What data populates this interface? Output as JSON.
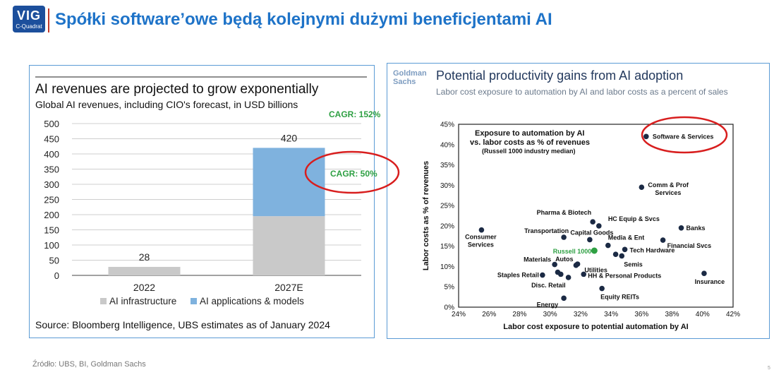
{
  "header": {
    "logo_text": "VIG",
    "logo_sub": "C-Quadrat",
    "title": "Spółki software’owe będą kolejnymi dużymi beneficjentami AI"
  },
  "left_chart": {
    "title": "AI revenues are projected to grow exponentially",
    "subtitle": "Global AI revenues, including CIO's forecast, in USD billions",
    "cagr_top": "CAGR: 152%",
    "cagr_mid": "CAGR: 50%",
    "source": "Source: Bloomberg Intelligence, UBS estimates as of January 2024",
    "colors": {
      "infrastructure": "#c9c9c9",
      "applications": "#7fb2de",
      "cagr": "#2ea043",
      "highlight": "#d81e1e"
    }
  },
  "right_chart": {
    "brand_line1": "Goldman",
    "brand_line2": "Sachs",
    "title": "Potential productivity gains from AI adoption",
    "subtitle": "Labor cost exposure to automation by AI and labor costs as a percent of sales",
    "inner_title_1": "Exposure to automation by AI",
    "inner_title_2": "vs. labor costs as % of revenues",
    "inner_title_3": "(Russell 1000 industry median)",
    "colors": {
      "point": "#1b2a44",
      "benchmark": "#2ea043",
      "highlight": "#d81e1e"
    }
  },
  "footer": {
    "source": "Źródło: UBS, BI, Goldman Sachs",
    "page": "5"
  },
  "chart_data": [
    {
      "type": "bar",
      "stacked": true,
      "categories": [
        "2022",
        "2027E"
      ],
      "series": [
        {
          "name": "AI infrastructure",
          "values": [
            28,
            195
          ]
        },
        {
          "name": "AI applications & models",
          "values": [
            0,
            225
          ]
        }
      ],
      "totals": [
        28,
        420
      ],
      "ylim": [
        0,
        500
      ],
      "yticks": [
        0,
        50,
        100,
        150,
        200,
        250,
        300,
        350,
        400,
        450,
        500
      ],
      "grid": true,
      "legend": "bottom"
    },
    {
      "type": "scatter",
      "xlabel": "Labor cost exposure to potential automation by AI",
      "ylabel": "Labor costs as % of revenues",
      "xlim": [
        24,
        42
      ],
      "ylim": [
        0,
        45
      ],
      "xticks": [
        24,
        26,
        28,
        30,
        32,
        34,
        36,
        38,
        40,
        42
      ],
      "yticks": [
        0,
        5,
        10,
        15,
        20,
        25,
        30,
        35,
        40,
        45
      ],
      "tick_suffix": "%",
      "points": [
        {
          "label": "Software & Services",
          "x": 36.3,
          "y": 42.0
        },
        {
          "label": "Comm & Prof",
          "label2": "Services",
          "x": 36.0,
          "y": 29.5
        },
        {
          "label": "Pharma & Biotech",
          "x": 32.8,
          "y": 21.0
        },
        {
          "label": "HC Equip & Svcs",
          "x": 33.2,
          "y": 20.0
        },
        {
          "label": "Banks",
          "x": 38.6,
          "y": 19.5
        },
        {
          "label": "Consumer",
          "label2": "Services",
          "x": 25.5,
          "y": 19.0
        },
        {
          "label": "Transportation",
          "x": 30.9,
          "y": 17.2
        },
        {
          "label": "Capital Goods",
          "x": 32.6,
          "y": 16.6
        },
        {
          "label": "Media & Ent",
          "x": 33.8,
          "y": 15.2
        },
        {
          "label": "Financial Svcs",
          "x": 37.4,
          "y": 16.5
        },
        {
          "label": "Russell 1000",
          "x": 32.9,
          "y": 13.9,
          "benchmark": true
        },
        {
          "label": "Tech Hardware",
          "x": 34.9,
          "y": 14.2
        },
        {
          "label": "",
          "x": 34.3,
          "y": 13.0
        },
        {
          "label": "Semis",
          "x": 34.7,
          "y": 12.6
        },
        {
          "label": "Materials",
          "x": 30.3,
          "y": 10.5
        },
        {
          "label": "Autos",
          "x": 31.8,
          "y": 10.6
        },
        {
          "label": "Utilities",
          "x": 31.7,
          "y": 10.3
        },
        {
          "label": "Insurance",
          "x": 40.1,
          "y": 8.3
        },
        {
          "label": "Staples Retail",
          "x": 29.5,
          "y": 7.9
        },
        {
          "label": "",
          "x": 30.5,
          "y": 8.6
        },
        {
          "label": "",
          "x": 30.7,
          "y": 8.1
        },
        {
          "label": "Disc. Retail",
          "x": 31.2,
          "y": 7.3
        },
        {
          "label": "HH & Personal Products",
          "x": 32.2,
          "y": 8.1
        },
        {
          "label": "Equity REITs",
          "x": 33.4,
          "y": 4.6
        },
        {
          "label": "Energy",
          "x": 30.9,
          "y": 2.2
        }
      ]
    }
  ]
}
